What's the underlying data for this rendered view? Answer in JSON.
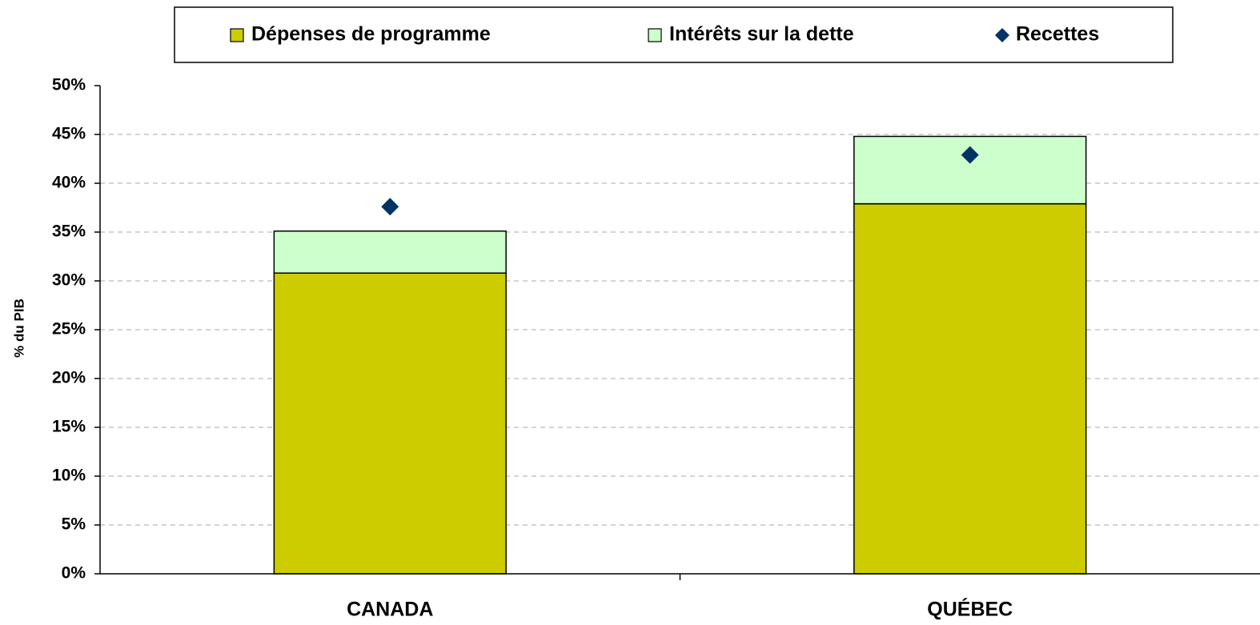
{
  "chart_data": {
    "type": "bar",
    "stacked": true,
    "y_label": "% du PIB",
    "categories": [
      "CANADA",
      "QUÉBEC"
    ],
    "series": [
      {
        "name": "Dépenses de programme",
        "color": "#cccc00",
        "values": [
          30.8,
          37.9
        ]
      },
      {
        "name": "Intérêts sur la dette",
        "color": "#ccffcc",
        "values": [
          4.3,
          6.9
        ]
      },
      {
        "name": "Recettes",
        "type": "scatter",
        "color": "#003366",
        "values": [
          37.6,
          42.9
        ]
      }
    ],
    "ylim": [
      0,
      50
    ],
    "yticks": [
      {
        "value": 0,
        "label": "0%"
      },
      {
        "value": 5,
        "label": "5%"
      },
      {
        "value": 10,
        "label": "10%"
      },
      {
        "value": 15,
        "label": "15%"
      },
      {
        "value": 20,
        "label": "20%"
      },
      {
        "value": 25,
        "label": "25%"
      },
      {
        "value": 30,
        "label": "30%"
      },
      {
        "value": 35,
        "label": "35%"
      },
      {
        "value": 40,
        "label": "40%"
      },
      {
        "value": 45,
        "label": "45%"
      },
      {
        "value": 50,
        "label": "50%"
      }
    ],
    "grid": true,
    "legend": "top"
  }
}
